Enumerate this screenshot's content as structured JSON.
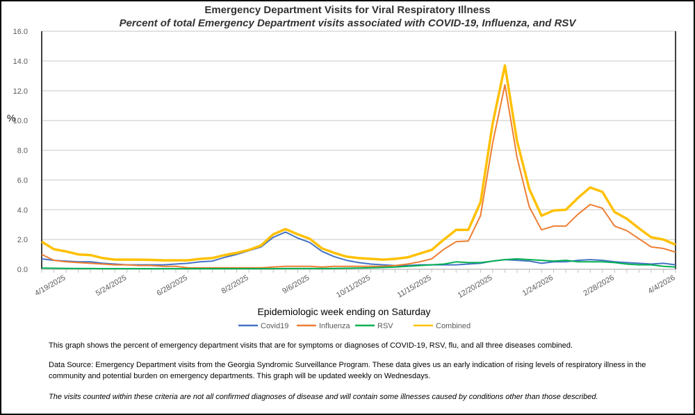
{
  "chart_data": {
    "type": "line",
    "title": "Emergency Department Visits for Viral Respiratory Illness",
    "subtitle": "Percent of total Emergency Department visits associated with COVID-19, Influenza, and RSV",
    "xlabel": "Epidemiologic week ending on Saturday",
    "ylabel": "%",
    "ylim": [
      0,
      16
    ],
    "yticks": [
      "0.0",
      "2.0",
      "4.0",
      "6.0",
      "8.0",
      "10.0",
      "12.0",
      "14.0",
      "16.0"
    ],
    "grid": true,
    "legend_position": "bottom",
    "x": [
      "4/5/2025",
      "4/12/2025",
      "4/19/2025",
      "4/26/2025",
      "5/3/2025",
      "5/10/2025",
      "5/17/2025",
      "5/24/2025",
      "5/31/2025",
      "6/7/2025",
      "6/14/2025",
      "6/21/2025",
      "6/28/2025",
      "7/5/2025",
      "7/12/2025",
      "7/19/2025",
      "7/26/2025",
      "8/2/2025",
      "8/9/2025",
      "8/16/2025",
      "8/23/2025",
      "8/30/2025",
      "9/6/2025",
      "9/13/2025",
      "9/20/2025",
      "9/27/2025",
      "10/4/2025",
      "10/11/2025",
      "10/18/2025",
      "10/25/2025",
      "11/1/2025",
      "11/8/2025",
      "11/15/2025",
      "11/22/2025",
      "11/29/2025",
      "12/6/2025",
      "12/13/2025",
      "12/20/2025",
      "12/27/2025",
      "1/3/2026",
      "1/10/2026",
      "1/17/2026",
      "1/24/2026",
      "1/31/2026",
      "2/7/2026",
      "2/14/2026",
      "2/21/2026",
      "2/28/2026",
      "3/7/2026",
      "3/14/2026",
      "3/21/2026",
      "3/28/2026",
      "4/4/2026"
    ],
    "xtick_labels": [
      "4/19/2025",
      "5/24/2025",
      "6/28/2025",
      "8/2/2025",
      "9/6/2025",
      "10/11/2025",
      "11/15/2025",
      "12/20/2025",
      "1/24/2026",
      "2/28/2026",
      "4/4/2026"
    ],
    "series": [
      {
        "name": "Covid19",
        "color": "#4472C4",
        "width": 2,
        "values": [
          0.7,
          0.6,
          0.55,
          0.5,
          0.5,
          0.4,
          0.35,
          0.3,
          0.3,
          0.3,
          0.3,
          0.35,
          0.4,
          0.5,
          0.55,
          0.8,
          1.0,
          1.25,
          1.5,
          2.15,
          2.5,
          2.1,
          1.8,
          1.2,
          0.85,
          0.6,
          0.45,
          0.35,
          0.3,
          0.25,
          0.25,
          0.3,
          0.3,
          0.3,
          0.3,
          0.35,
          0.4,
          0.55,
          0.65,
          0.6,
          0.55,
          0.4,
          0.5,
          0.5,
          0.6,
          0.65,
          0.6,
          0.5,
          0.45,
          0.4,
          0.35,
          0.4,
          0.3
        ]
      },
      {
        "name": "Influenza",
        "color": "#ED7D31",
        "width": 2,
        "values": [
          1.0,
          0.6,
          0.5,
          0.45,
          0.4,
          0.35,
          0.3,
          0.3,
          0.25,
          0.25,
          0.2,
          0.2,
          0.1,
          0.1,
          0.1,
          0.1,
          0.1,
          0.1,
          0.1,
          0.15,
          0.2,
          0.2,
          0.2,
          0.15,
          0.2,
          0.2,
          0.2,
          0.2,
          0.2,
          0.25,
          0.35,
          0.5,
          0.7,
          1.35,
          1.85,
          1.9,
          3.6,
          8.5,
          12.4,
          7.5,
          4.2,
          2.65,
          2.9,
          2.9,
          3.7,
          4.35,
          4.1,
          2.9,
          2.6,
          2.05,
          1.5,
          1.4,
          1.15
        ]
      },
      {
        "name": "RSV",
        "color": "#00B050",
        "width": 2,
        "values": [
          0.08,
          0.07,
          0.06,
          0.05,
          0.05,
          0.04,
          0.04,
          0.04,
          0.04,
          0.04,
          0.04,
          0.04,
          0.04,
          0.04,
          0.04,
          0.04,
          0.04,
          0.04,
          0.04,
          0.04,
          0.05,
          0.05,
          0.05,
          0.05,
          0.06,
          0.07,
          0.08,
          0.1,
          0.12,
          0.15,
          0.2,
          0.25,
          0.3,
          0.35,
          0.5,
          0.45,
          0.45,
          0.55,
          0.65,
          0.7,
          0.65,
          0.6,
          0.55,
          0.6,
          0.5,
          0.5,
          0.5,
          0.45,
          0.35,
          0.3,
          0.3,
          0.2,
          0.15
        ]
      },
      {
        "name": "Combined",
        "color": "#FFC000",
        "width": 3.5,
        "values": [
          1.85,
          1.35,
          1.2,
          1.0,
          0.95,
          0.75,
          0.65,
          0.65,
          0.65,
          0.63,
          0.6,
          0.6,
          0.6,
          0.7,
          0.75,
          0.95,
          1.1,
          1.3,
          1.6,
          2.35,
          2.7,
          2.35,
          2.05,
          1.4,
          1.1,
          0.85,
          0.75,
          0.7,
          0.65,
          0.7,
          0.8,
          1.05,
          1.3,
          2.0,
          2.65,
          2.65,
          4.5,
          9.8,
          13.7,
          8.6,
          5.4,
          3.6,
          3.95,
          4.0,
          4.8,
          5.5,
          5.2,
          3.85,
          3.4,
          2.75,
          2.15,
          2.0,
          1.65
        ]
      }
    ]
  },
  "notes": {
    "line1": "This graph shows the percent of emergency department visits that are for symptoms or diagnoses of COVID-19, RSV, flu, and all three diseases combined.",
    "line2": "Data Source: Emergency Department visits from the Georgia Syndromic Surveillance Program. These data gives us an early indication of rising levels of respiratory illness in the community and potential burden on emergency departments. This graph will be updated weekly on Wednesdays.",
    "line3": "The visits counted within these criteria are not all confirmed diagnoses of disease and will contain some illnesses caused by conditions other than those described."
  }
}
